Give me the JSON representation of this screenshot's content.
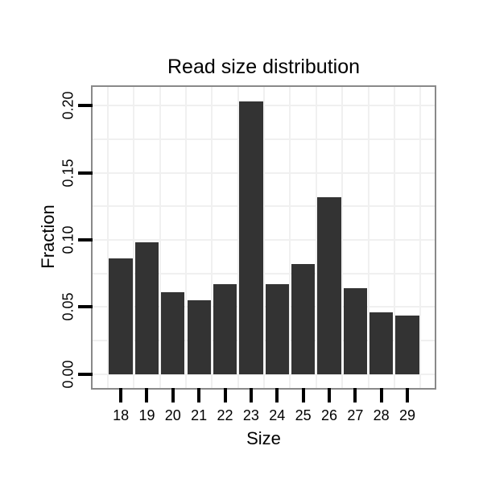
{
  "chart_data": {
    "type": "bar",
    "title": "Read size distribution",
    "xlabel": "Size",
    "ylabel": "Fraction",
    "categories": [
      "18",
      "19",
      "20",
      "21",
      "22",
      "23",
      "24",
      "25",
      "26",
      "27",
      "28",
      "29"
    ],
    "values": [
      0.086,
      0.098,
      0.061,
      0.055,
      0.067,
      0.203,
      0.067,
      0.082,
      0.132,
      0.064,
      0.046,
      0.044
    ],
    "yticks": [
      0.0,
      0.05,
      0.1,
      0.15,
      0.2
    ],
    "ytick_labels": [
      "0.00",
      "0.05",
      "0.10",
      "0.15",
      "0.20"
    ],
    "ylim": [
      -0.0102,
      0.2138
    ],
    "grid": {
      "y_from": 0,
      "y_to": 0.2,
      "y_step": 0.025,
      "vertical": "category-boundaries",
      "visible": true
    },
    "legend": "none",
    "colors": {
      "bar_fill": "#333333",
      "panel_border": "#898989",
      "gridline": "#f0f0f0",
      "tick_mark": "#000000",
      "text": "#000000",
      "background": "#ffffff"
    }
  }
}
